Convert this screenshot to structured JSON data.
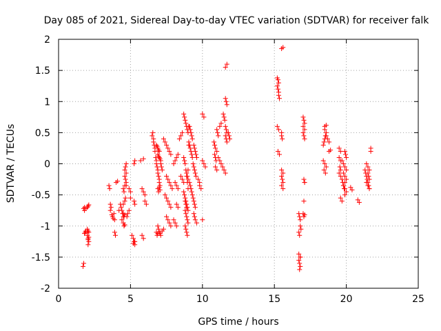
{
  "chart_data": {
    "type": "scatter",
    "title": "Day 085 of 2021, Sidereal Day-to-day VTEC variation (SDTVAR) for receiver falk",
    "xlabel": "GPS time / hours",
    "ylabel": "SDTVAR / TECUs",
    "xlim": [
      0,
      25
    ],
    "ylim": [
      -2,
      2
    ],
    "xticks": [
      "0",
      "5",
      "10",
      "15",
      "20",
      "25"
    ],
    "yticks": [
      "2",
      "1.5",
      "1",
      "0.5",
      "0",
      "-0.5",
      "-1",
      "-1.5",
      "-2"
    ],
    "grid": true,
    "marker": "+",
    "color": "#ff0000",
    "x": [
      1.7,
      1.75,
      1.8,
      1.85,
      1.9,
      2.0,
      2.05,
      2.1,
      1.8,
      1.9,
      2.0,
      2.05,
      2.1,
      2.0,
      2.05,
      2.0,
      2.05,
      2.1,
      2.05,
      2.1,
      1.75,
      1.8,
      3.5,
      3.55,
      3.6,
      3.65,
      3.6,
      3.7,
      3.75,
      3.8,
      3.85,
      3.9,
      3.9,
      3.95,
      4.0,
      4.1,
      4.2,
      4.3,
      4.35,
      4.4,
      4.45,
      4.5,
      4.4,
      4.5,
      4.55,
      4.6,
      4.5,
      4.55,
      4.6,
      4.6,
      4.65,
      4.5,
      4.55,
      4.6,
      4.6,
      4.7,
      4.6,
      4.65,
      4.7,
      4.65,
      4.7,
      4.7,
      4.75,
      4.5,
      4.8,
      4.9,
      5.0,
      4.9,
      5.0,
      5.1,
      5.2,
      5.25,
      5.3,
      5.2,
      5.3,
      5.25,
      5.3,
      5.25,
      5.3,
      5.8,
      5.9,
      5.8,
      5.9,
      6.0,
      5.7,
      5.9,
      6.0,
      6.1,
      6.5,
      6.55,
      6.6,
      6.6,
      6.65,
      6.7,
      6.7,
      6.75,
      6.8,
      6.8,
      6.85,
      6.9,
      6.9,
      6.95,
      7.0,
      7.0,
      7.05,
      6.8,
      6.85,
      6.9,
      6.95,
      7.0,
      6.9,
      6.95,
      7.0,
      7.05,
      7.1,
      7.1,
      7.15,
      7.2,
      6.9,
      6.95,
      7.0,
      7.05,
      7.1,
      7.2,
      7.3,
      6.8,
      6.85,
      6.9,
      6.9,
      6.95,
      7.0,
      7.05,
      7.3,
      7.4,
      7.5,
      7.6,
      7.7,
      7.8,
      7.5,
      7.6,
      7.7,
      7.8,
      7.9,
      7.4,
      7.5,
      7.6,
      7.7,
      7.8,
      7.5,
      7.6,
      7.7,
      7.8,
      8.0,
      8.1,
      8.2,
      8.3,
      8.1,
      8.2,
      8.3,
      8.2,
      8.3,
      8.0,
      8.1,
      8.2,
      8.4,
      8.5,
      8.6,
      8.5,
      8.6,
      8.7,
      8.7,
      8.75,
      8.8,
      8.85,
      8.9,
      8.95,
      9.0,
      8.7,
      8.75,
      8.8,
      8.85,
      8.9,
      8.95,
      9.0,
      8.7,
      8.75,
      8.8,
      8.85,
      8.9,
      8.95,
      8.8,
      8.85,
      8.9,
      8.95,
      9.0,
      8.8,
      8.85,
      8.9,
      8.95,
      8.8,
      8.85,
      8.9,
      9.0,
      9.0,
      8.9,
      8.95,
      9.0,
      9.05,
      9.05,
      9.05,
      9.1,
      9.15,
      9.2,
      9.25,
      9.3,
      9.1,
      9.15,
      9.2,
      9.25,
      9.3,
      9.1,
      9.15,
      9.2,
      9.25,
      9.3,
      9.35,
      9.4,
      9.45,
      9.5,
      9.35,
      9.4,
      9.45,
      9.5,
      9.55,
      9.4,
      9.45,
      9.5,
      9.4,
      9.45,
      9.5,
      9.55,
      9.6,
      9.6,
      9.7,
      9.8,
      9.8,
      9.9,
      10.0,
      10.1,
      10.0,
      10.1,
      10.2,
      10.0,
      10.8,
      10.85,
      10.9,
      10.85,
      10.9,
      10.95,
      10.9,
      11.0,
      11.0,
      11.05,
      11.1,
      11.2,
      11.3,
      11.0,
      11.1,
      11.2,
      11.3,
      11.4,
      11.5,
      11.6,
      11.45,
      11.5,
      11.55,
      11.6,
      11.65,
      11.7,
      11.6,
      11.65,
      11.7,
      11.6,
      11.65,
      11.7,
      11.8,
      11.85,
      11.9,
      11.7,
      11.6,
      15.2,
      15.25,
      15.3,
      15.2,
      15.25,
      15.3,
      15.3,
      15.35,
      15.2,
      15.3,
      15.25,
      15.35,
      15.5,
      15.5,
      15.55,
      15.5,
      15.6,
      15.5,
      15.55,
      15.6,
      15.5,
      15.6,
      15.5,
      15.6,
      16.7,
      16.75,
      16.8,
      16.8,
      16.85,
      16.7,
      16.75,
      16.8,
      16.7,
      16.75,
      16.8,
      16.75,
      16.8,
      16.7,
      17.0,
      17.05,
      17.1,
      17.05,
      17.1,
      17.0,
      17.05,
      17.1,
      17.0,
      17.1,
      17.0,
      17.05,
      17.1,
      17.05,
      17.1,
      18.4,
      18.45,
      18.5,
      18.55,
      18.6,
      18.4,
      18.5,
      18.6,
      18.45,
      18.55,
      18.5,
      18.6,
      18.5,
      18.6,
      18.7,
      18.8,
      18.9,
      18.8,
      19.5,
      19.6,
      19.5,
      19.6,
      19.55,
      19.6,
      19.5,
      19.6,
      19.7,
      19.75,
      19.8,
      19.85,
      19.9,
      19.95,
      20.0,
      19.7,
      19.8,
      19.9,
      20.0,
      19.8,
      19.9,
      20.0,
      19.9,
      19.8,
      19.9,
      20.0,
      19.9,
      19.6,
      19.7,
      20.3,
      20.4,
      20.8,
      20.9,
      21.3,
      21.35,
      21.4,
      21.45,
      21.5,
      21.55,
      21.6,
      21.4,
      21.5,
      21.6,
      21.5,
      21.55,
      21.6,
      21.4,
      21.5,
      21.6,
      21.7,
      21.7
    ],
    "y": [
      -1.65,
      -1.6,
      -1.12,
      -1.1,
      -1.08,
      -1.1,
      -1.2,
      -1.25,
      -0.75,
      -0.72,
      -0.7,
      -0.68,
      -0.66,
      -1.15,
      -1.3,
      -1.05,
      -1.08,
      -1.1,
      -1.22,
      -1.18,
      -0.72,
      -0.7,
      -0.35,
      -0.4,
      -0.65,
      -0.7,
      -0.75,
      -0.82,
      -0.85,
      -0.88,
      -0.8,
      -0.9,
      -1.1,
      -1.15,
      -0.3,
      -0.28,
      -0.75,
      -0.65,
      -0.7,
      -0.75,
      -0.8,
      -0.85,
      -0.9,
      -0.95,
      -1.0,
      -0.98,
      -0.8,
      -0.85,
      -0.82,
      -0.6,
      -0.55,
      -0.4,
      -0.45,
      -0.35,
      -0.2,
      -0.15,
      -0.1,
      -0.05,
      0.0,
      -0.25,
      -0.3,
      -0.35,
      -0.85,
      -0.65,
      -0.8,
      -0.75,
      -0.45,
      -0.4,
      -0.55,
      -1.15,
      -1.2,
      -1.25,
      -1.3,
      -1.28,
      -1.25,
      0.0,
      0.05,
      -0.6,
      -0.65,
      -1.15,
      -1.2,
      -0.4,
      -0.45,
      -0.5,
      0.05,
      0.08,
      -0.6,
      -0.65,
      0.45,
      0.5,
      0.4,
      0.35,
      0.3,
      0.25,
      0.2,
      0.1,
      0.05,
      0.0,
      -0.05,
      -0.1,
      -0.15,
      -0.2,
      -0.25,
      -0.3,
      -0.35,
      0.3,
      0.28,
      0.25,
      0.22,
      0.2,
      0.15,
      0.12,
      0.1,
      0.08,
      0.05,
      0.0,
      -0.05,
      -0.1,
      -1.0,
      -1.05,
      -1.1,
      -1.12,
      -1.15,
      -1.08,
      -1.05,
      -1.1,
      -1.15,
      -1.12,
      -0.4,
      -0.45,
      -0.38,
      -0.42,
      0.4,
      0.35,
      0.3,
      0.25,
      0.2,
      0.15,
      -0.2,
      -0.25,
      -0.3,
      -0.35,
      -0.4,
      -0.5,
      -0.55,
      -0.6,
      -0.65,
      -0.7,
      -0.85,
      -0.9,
      -0.95,
      -1.0,
      0.0,
      0.05,
      0.1,
      0.15,
      -0.3,
      -0.35,
      -0.4,
      -0.65,
      -0.7,
      -0.9,
      -0.95,
      -1.0,
      0.4,
      0.45,
      0.5,
      -0.2,
      -0.25,
      -0.3,
      0.8,
      0.75,
      0.7,
      0.65,
      0.6,
      0.55,
      0.5,
      0.1,
      0.05,
      0.0,
      -0.1,
      -0.2,
      -0.3,
      -0.4,
      -0.45,
      -0.5,
      -0.55,
      -0.6,
      -0.65,
      -0.7,
      -0.75,
      -0.8,
      -0.85,
      -0.9,
      -0.95,
      -1.0,
      -1.05,
      -1.1,
      -1.15,
      -0.6,
      -0.65,
      -0.7,
      -0.75,
      -0.1,
      -0.15,
      -0.2,
      -0.25,
      0.3,
      0.35,
      0.6,
      0.6,
      0.55,
      0.5,
      0.45,
      0.4,
      0.3,
      0.25,
      0.2,
      0.15,
      0.1,
      -0.3,
      -0.35,
      -0.4,
      -0.45,
      -0.5,
      -0.55,
      -0.6,
      -0.65,
      -0.7,
      0.0,
      -0.05,
      -0.1,
      -0.15,
      -0.2,
      -0.8,
      -0.85,
      -0.9,
      0.3,
      0.25,
      0.2,
      0.15,
      0.1,
      -0.95,
      -0.25,
      -0.3,
      -0.35,
      -0.4,
      0.8,
      0.75,
      0.05,
      0.0,
      -0.05,
      -0.9,
      0.35,
      0.3,
      0.25,
      0.15,
      0.1,
      0.05,
      -0.05,
      -0.1,
      0.55,
      0.5,
      0.45,
      0.6,
      0.65,
      0.2,
      0.1,
      0.05,
      0.0,
      -0.05,
      -0.1,
      -0.15,
      0.8,
      0.75,
      0.7,
      0.6,
      0.55,
      0.5,
      1.05,
      1.0,
      0.95,
      0.45,
      0.4,
      0.35,
      0.5,
      0.45,
      0.4,
      1.6,
      1.55,
      1.38,
      1.35,
      1.3,
      1.25,
      1.2,
      1.15,
      1.1,
      1.05,
      0.6,
      0.55,
      0.2,
      0.15,
      0.45,
      0.5,
      0.4,
      -0.1,
      -0.15,
      -0.2,
      -0.25,
      -0.3,
      -0.35,
      -0.4,
      1.85,
      1.87,
      -0.8,
      -0.85,
      -0.9,
      -1.0,
      -1.05,
      -1.1,
      -1.15,
      -1.5,
      -1.55,
      -1.6,
      -1.65,
      -1.7,
      -1.5,
      -1.45,
      -0.8,
      -0.85,
      -0.82,
      -0.6,
      -0.3,
      0.75,
      0.7,
      0.65,
      0.6,
      0.55,
      0.5,
      0.45,
      0.4,
      -0.25,
      -0.3,
      0.3,
      0.35,
      0.4,
      0.45,
      0.5,
      0.05,
      0.0,
      -0.05,
      -0.1,
      -0.15,
      0.6,
      0.62,
      0.55,
      0.45,
      0.4,
      0.35,
      0.22,
      0.2,
      0.25,
      0.2,
      0.1,
      0.05,
      -0.05,
      -0.1,
      -0.15,
      -0.2,
      -0.25,
      -0.3,
      -0.35,
      -0.4,
      0.2,
      0.15,
      0.1,
      0.05,
      0.0,
      -0.05,
      -0.1,
      -0.15,
      -0.2,
      -0.25,
      -0.3,
      -0.35,
      -0.4,
      -0.45,
      -0.5,
      -0.55,
      -0.6,
      -0.38,
      -0.42,
      -0.58,
      -0.62,
      -0.1,
      -0.15,
      -0.2,
      -0.25,
      -0.3,
      -0.35,
      -0.4,
      0.0,
      -0.05,
      -0.1,
      -0.15,
      -0.2,
      -0.25,
      -0.3,
      -0.35,
      -0.4,
      0.25,
      0.2
    ]
  }
}
